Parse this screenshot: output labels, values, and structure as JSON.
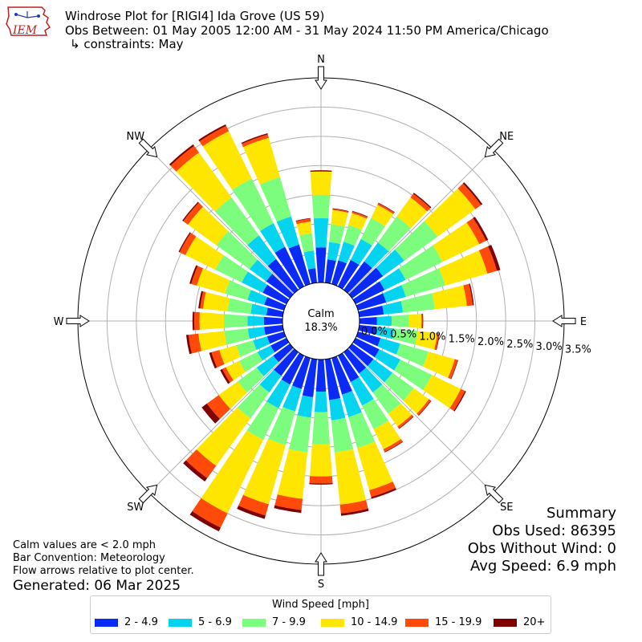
{
  "header": {
    "logo_text": "IEM",
    "title": "Windrose Plot for [RIGI4] Ida Grove (US 59)",
    "period": "Obs Between: 01 May 2005 12:00 AM - 31 May 2024 11:50 PM America/Chicago",
    "constraints": "↳ constraints: May"
  },
  "notes": {
    "calm_def": "Calm values are < 2.0 mph",
    "bar_convention": "Bar Convention: Meteorology",
    "flow_arrows": "Flow arrows relative to plot center.",
    "generated": "Generated: 06 Mar 2025"
  },
  "summary": {
    "title": "Summary",
    "obs_used": "Obs Used: 86395",
    "obs_without_wind": "Obs Without Wind: 0",
    "avg_speed": "Avg Speed: 6.9 mph"
  },
  "calm": {
    "label": "Calm",
    "value": "18.3%"
  },
  "legend": {
    "title": "Wind Speed [mph]",
    "items": [
      {
        "label": "2 - 4.9",
        "color": "#0a2bf5"
      },
      {
        "label": "5 - 6.9",
        "color": "#05d4f0"
      },
      {
        "label": "7 - 9.9",
        "color": "#7dfd7d"
      },
      {
        "label": "10 - 14.9",
        "color": "#ffe600"
      },
      {
        "label": "15 - 19.9",
        "color": "#ff4a0a"
      },
      {
        "label": "20+",
        "color": "#800000"
      }
    ]
  },
  "chart_data": {
    "type": "windrose",
    "bar_convention": "Meteorology",
    "calm_percent": 18.3,
    "r_ticks": [
      "0.0%",
      "0.5%",
      "1.0%",
      "1.5%",
      "2.0%",
      "2.5%",
      "3.0%",
      "3.5%"
    ],
    "r_tick_values": [
      0,
      0.5,
      1.0,
      1.5,
      2.0,
      2.5,
      3.0,
      3.5
    ],
    "compass_labels": [
      "N",
      "NE",
      "E",
      "SE",
      "S",
      "SW",
      "W",
      "NW"
    ],
    "speed_bins": [
      "2 - 4.9",
      "5 - 6.9",
      "7 - 9.9",
      "10 - 14.9",
      "15 - 19.9",
      "20+"
    ],
    "directions_deg": [
      0,
      10,
      20,
      30,
      40,
      50,
      60,
      70,
      80,
      90,
      100,
      110,
      120,
      130,
      140,
      150,
      160,
      170,
      180,
      190,
      200,
      210,
      220,
      230,
      240,
      250,
      260,
      270,
      280,
      290,
      300,
      310,
      320,
      330,
      340,
      350
    ],
    "cumulative_percent": [
      [
        0.6,
        1.1,
        1.5,
        1.9,
        1.9,
        1.92
      ],
      [
        0.4,
        0.7,
        1.0,
        1.25,
        1.27,
        1.28
      ],
      [
        0.42,
        0.75,
        1.05,
        1.26,
        1.29,
        1.3
      ],
      [
        0.5,
        0.9,
        1.3,
        1.55,
        1.58,
        1.59
      ],
      [
        0.6,
        1.0,
        1.55,
        1.95,
        2.03,
        2.05
      ],
      [
        0.65,
        1.1,
        1.8,
        2.6,
        2.72,
        2.75
      ],
      [
        0.55,
        0.95,
        1.65,
        2.35,
        2.48,
        2.52
      ],
      [
        0.5,
        0.85,
        1.55,
        2.3,
        2.47,
        2.53
      ],
      [
        0.42,
        0.75,
        1.3,
        1.85,
        1.95,
        1.97
      ],
      [
        0.3,
        0.55,
        0.85,
        1.06,
        1.08,
        1.09
      ],
      [
        0.3,
        0.6,
        1.0,
        1.34,
        1.37,
        1.38
      ],
      [
        0.4,
        0.75,
        1.25,
        1.72,
        1.77,
        1.78
      ],
      [
        0.45,
        0.85,
        1.45,
        2.0,
        2.08,
        2.1
      ],
      [
        0.45,
        0.85,
        1.3,
        1.62,
        1.66,
        1.67
      ],
      [
        0.45,
        0.85,
        1.3,
        1.57,
        1.61,
        1.62
      ],
      [
        0.5,
        0.95,
        1.4,
        1.78,
        1.83,
        1.84
      ],
      [
        0.65,
        1.05,
        1.6,
        2.35,
        2.47,
        2.5
      ],
      [
        0.7,
        1.05,
        1.6,
        2.5,
        2.65,
        2.69
      ],
      [
        0.55,
        0.9,
        1.45,
        2.0,
        2.12,
        2.14
      ],
      [
        0.65,
        1.0,
        1.6,
        2.4,
        2.59,
        2.64
      ],
      [
        0.55,
        0.95,
        1.55,
        2.6,
        2.8,
        2.86
      ],
      [
        0.55,
        1.0,
        1.6,
        3.0,
        3.27,
        3.34
      ],
      [
        0.5,
        0.85,
        1.4,
        2.4,
        2.66,
        2.73
      ],
      [
        0.35,
        0.7,
        1.1,
        1.5,
        1.75,
        1.86
      ],
      [
        0.3,
        0.55,
        0.9,
        1.15,
        1.22,
        1.26
      ],
      [
        0.3,
        0.55,
        0.85,
        1.15,
        1.29,
        1.33
      ],
      [
        0.32,
        0.6,
        1.0,
        1.45,
        1.62,
        1.66
      ],
      [
        0.32,
        0.6,
        1.0,
        1.42,
        1.51,
        1.54
      ],
      [
        0.28,
        0.55,
        0.95,
        1.37,
        1.42,
        1.45
      ],
      [
        0.35,
        0.65,
        1.05,
        1.55,
        1.65,
        1.68
      ],
      [
        0.45,
        0.85,
        1.35,
        1.92,
        2.03,
        2.05
      ],
      [
        0.5,
        0.85,
        1.55,
        2.15,
        2.25,
        2.27
      ],
      [
        0.65,
        1.15,
        1.95,
        2.9,
        3.04,
        3.07
      ],
      [
        0.75,
        1.2,
        2.05,
        2.95,
        3.05,
        3.08
      ],
      [
        0.7,
        1.2,
        1.9,
        2.6,
        2.66,
        2.68
      ],
      [
        0.25,
        0.55,
        0.85,
        1.05,
        1.1,
        1.11
      ]
    ]
  }
}
